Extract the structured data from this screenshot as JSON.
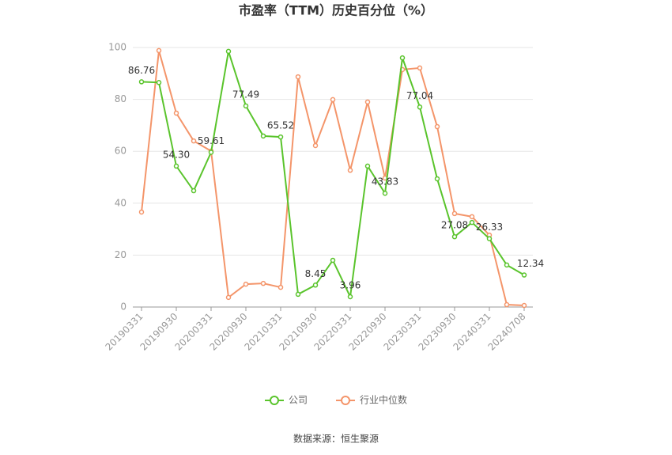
{
  "chart_data": {
    "type": "line",
    "title": "市盈率（TTM）历史百分位（%）",
    "source": "数据来源：恒生聚源",
    "categories": [
      "20190331",
      null,
      "20190930",
      null,
      "20200331",
      null,
      "20200930",
      null,
      "20210331",
      null,
      "20210930",
      null,
      "20220331",
      null,
      "20220930",
      null,
      "20230331",
      null,
      "20230930",
      null,
      "20240331",
      null,
      "20240708"
    ],
    "series": [
      {
        "name": "公司",
        "color": "#5ac42c",
        "values": [
          86.76,
          86.5,
          54.3,
          44.8,
          59.61,
          98.5,
          77.49,
          65.9,
          65.52,
          4.9,
          8.45,
          18.0,
          3.96,
          54.3,
          43.83,
          96.0,
          77.04,
          49.4,
          27.08,
          32.6,
          26.33,
          16.2,
          12.34
        ],
        "value_labels": [
          "86.76",
          null,
          "54.30",
          null,
          "59.61",
          null,
          "77.49",
          null,
          "65.52",
          null,
          "8.45",
          null,
          "3.96",
          null,
          "43.83",
          null,
          "77.04",
          null,
          "27.08",
          null,
          "26.33",
          null,
          "12.34"
        ]
      },
      {
        "name": "行业中位数",
        "color": "#f4956a",
        "values": [
          36.6,
          98.8,
          74.7,
          64.0,
          60.1,
          3.7,
          8.8,
          9.1,
          7.6,
          88.7,
          62.2,
          79.9,
          52.7,
          79.0,
          49.7,
          91.5,
          92.1,
          69.5,
          36.0,
          34.8,
          27.7,
          0.9,
          0.6
        ]
      }
    ],
    "ylim": [
      0,
      100
    ],
    "yticks": [
      0,
      20,
      40,
      60,
      80,
      100
    ],
    "grid": true,
    "legend": "bottom"
  }
}
